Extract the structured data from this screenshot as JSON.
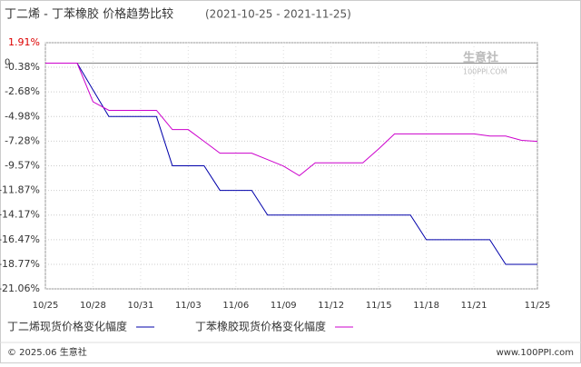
{
  "chart_data": {
    "type": "line",
    "title": "丁二烯 - 丁苯橡胶 价格趋势比较",
    "subtitle": "(2021-10-25 - 2021-11-25)",
    "categories": [
      "10/25",
      null,
      null,
      "10/28",
      null,
      null,
      "10/31",
      null,
      null,
      "11/03",
      null,
      null,
      "11/06",
      null,
      null,
      "11/09",
      null,
      null,
      "11/12",
      null,
      null,
      "11/15",
      null,
      null,
      "11/18",
      null,
      null,
      "11/21",
      null,
      null,
      null,
      "11/25"
    ],
    "series": [
      {
        "name": "丁二烯现货价格变化幅度",
        "color": "#0000aa",
        "values": [
          0,
          0,
          0,
          -2.5,
          -4.98,
          -4.98,
          -4.98,
          -4.98,
          -9.57,
          -9.57,
          -9.57,
          -11.87,
          -11.87,
          -11.87,
          -14.17,
          -14.17,
          -14.17,
          -14.17,
          -14.17,
          -14.17,
          -14.17,
          -14.17,
          -14.17,
          -14.17,
          -16.47,
          -16.47,
          -16.47,
          -16.47,
          -16.47,
          -18.77,
          -18.77,
          -18.77
        ]
      },
      {
        "name": "丁苯橡胶现货价格变化幅度",
        "color": "#cc00cc",
        "values": [
          0,
          0,
          0,
          -3.6,
          -4.4,
          -4.4,
          -4.4,
          -4.4,
          -6.2,
          -6.2,
          -7.3,
          -8.4,
          -8.4,
          -8.4,
          -9.0,
          -9.6,
          -10.5,
          -9.3,
          -9.3,
          -9.3,
          -9.3,
          -8.0,
          -6.6,
          -6.6,
          -6.6,
          -6.6,
          -6.6,
          -6.6,
          -6.8,
          -6.8,
          -7.2,
          -7.3
        ]
      }
    ],
    "ylim": [
      -21.06,
      1.91
    ],
    "yticks": [
      {
        "value": 1.91,
        "label": "1.91%"
      },
      0,
      {
        "value": -0.38,
        "label": "-0.38%"
      },
      {
        "value": -2.68,
        "label": "-2.68%"
      },
      {
        "value": -4.98,
        "label": "-4.98%"
      },
      {
        "value": -7.28,
        "label": "-7.28%"
      },
      {
        "value": -9.57,
        "label": "-9.57%"
      },
      {
        "value": -11.87,
        "label": "-11.87%"
      },
      {
        "value": -14.17,
        "label": "-14.17%"
      },
      {
        "value": -16.47,
        "label": "-16.47%"
      },
      {
        "value": -18.77,
        "label": "-18.77%"
      },
      {
        "value": -21.06,
        "label": "-21.06%"
      }
    ],
    "grid": true,
    "watermark": "生意社",
    "watermark_url": "100PPI.COM",
    "footer_left": "© 2025.06 生意社",
    "footer_right": "www.100PPI.com"
  }
}
